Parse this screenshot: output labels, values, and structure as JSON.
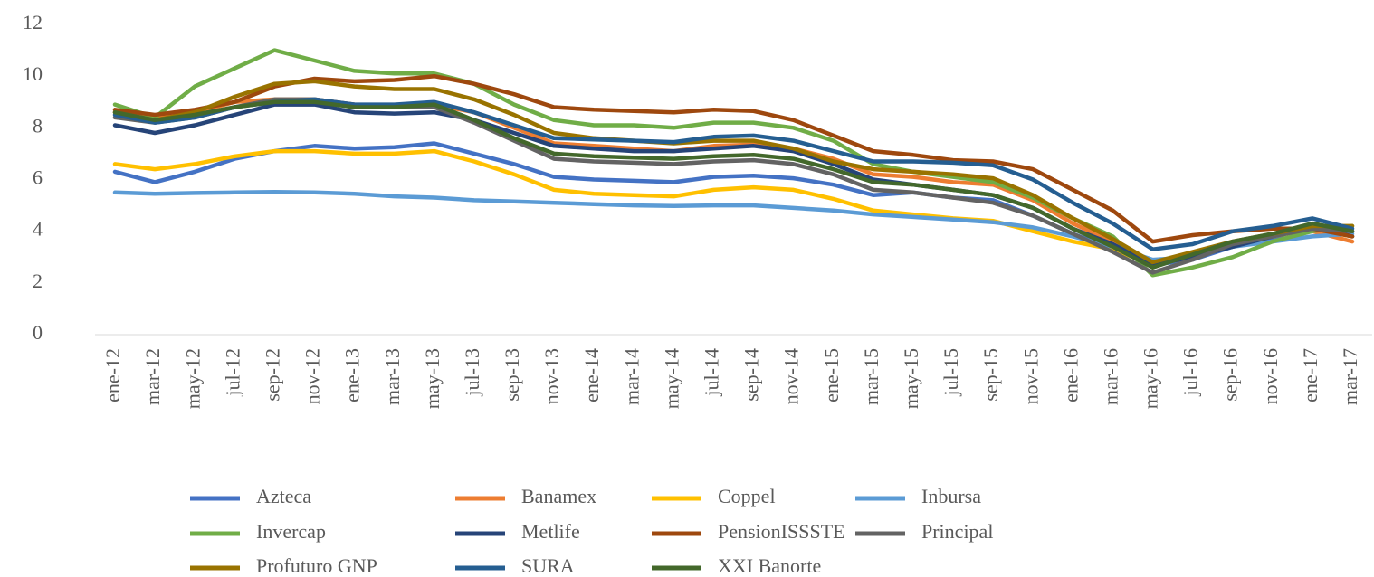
{
  "chart_data": {
    "type": "line",
    "categories": [
      "ene-12",
      "mar-12",
      "may-12",
      "jul-12",
      "sep-12",
      "nov-12",
      "ene-13",
      "mar-13",
      "may-13",
      "jul-13",
      "sep-13",
      "nov-13",
      "ene-14",
      "mar-14",
      "may-14",
      "jul-14",
      "sep-14",
      "nov-14",
      "ene-15",
      "mar-15",
      "may-15",
      "jul-15",
      "sep-15",
      "nov-15",
      "ene-16",
      "mar-16",
      "may-16",
      "jul-16",
      "sep-16",
      "nov-16",
      "ene-17",
      "mar-17"
    ],
    "ylim": [
      0,
      12
    ],
    "yticks": [
      0,
      2,
      4,
      6,
      8,
      10,
      12
    ],
    "grid": false,
    "legend": "bottom",
    "series": [
      {
        "name": "Azteca",
        "color": "#4472c4",
        "values": [
          6.3,
          5.9,
          6.3,
          6.8,
          7.1,
          7.3,
          7.2,
          7.25,
          7.4,
          7.0,
          6.6,
          6.1,
          6.0,
          5.95,
          5.9,
          6.1,
          6.15,
          6.05,
          5.8,
          5.4,
          5.5,
          5.3,
          5.2,
          4.6,
          3.9,
          3.3,
          2.7,
          2.9,
          3.4,
          3.7,
          4.3,
          4.0
        ]
      },
      {
        "name": "Banamex",
        "color": "#ed7d31",
        "values": [
          8.6,
          8.4,
          8.6,
          9.0,
          9.1,
          9.1,
          8.9,
          8.8,
          8.9,
          8.6,
          8.0,
          7.4,
          7.3,
          7.2,
          7.1,
          7.3,
          7.35,
          7.2,
          6.8,
          6.2,
          6.1,
          5.9,
          5.8,
          5.2,
          4.3,
          3.6,
          2.8,
          3.0,
          3.5,
          3.9,
          4.0,
          3.6
        ]
      },
      {
        "name": "Coppel",
        "color": "#ffc000",
        "values": [
          6.6,
          6.4,
          6.6,
          6.9,
          7.1,
          7.1,
          7.0,
          7.0,
          7.1,
          6.7,
          6.2,
          5.6,
          5.45,
          5.4,
          5.35,
          5.6,
          5.7,
          5.6,
          5.25,
          4.8,
          4.65,
          4.5,
          4.4,
          4.0,
          3.6,
          3.3,
          2.7,
          3.0,
          3.5,
          3.8,
          4.1,
          3.8
        ]
      },
      {
        "name": "Inbursa",
        "color": "#5b9bd5",
        "values": [
          5.5,
          5.45,
          5.48,
          5.5,
          5.52,
          5.5,
          5.45,
          5.35,
          5.3,
          5.2,
          5.15,
          5.1,
          5.05,
          5.0,
          4.98,
          5.0,
          5.0,
          4.9,
          4.8,
          4.65,
          4.55,
          4.45,
          4.35,
          4.15,
          3.8,
          3.4,
          2.9,
          3.0,
          3.4,
          3.6,
          3.8,
          3.9
        ]
      },
      {
        "name": "Invercap",
        "color": "#70ad47",
        "values": [
          8.9,
          8.4,
          9.6,
          10.3,
          11.0,
          10.6,
          10.2,
          10.1,
          10.1,
          9.7,
          8.9,
          8.3,
          8.1,
          8.1,
          8.0,
          8.2,
          8.2,
          8.0,
          7.5,
          6.6,
          6.3,
          6.1,
          5.9,
          5.3,
          4.5,
          3.8,
          2.3,
          2.6,
          3.0,
          3.6,
          4.0,
          4.2
        ]
      },
      {
        "name": "Metlife",
        "color": "#264478",
        "values": [
          8.1,
          7.8,
          8.1,
          8.5,
          8.9,
          8.9,
          8.6,
          8.55,
          8.6,
          8.3,
          7.8,
          7.3,
          7.2,
          7.1,
          7.1,
          7.2,
          7.3,
          7.1,
          6.6,
          6.0,
          5.8,
          5.6,
          5.4,
          4.9,
          4.1,
          3.5,
          2.7,
          3.0,
          3.4,
          3.8,
          4.2,
          3.8
        ]
      },
      {
        "name": "PensionISSSTE",
        "color": "#9e480e",
        "values": [
          8.7,
          8.5,
          8.7,
          9.0,
          9.6,
          9.9,
          9.8,
          9.85,
          10.0,
          9.7,
          9.3,
          8.8,
          8.7,
          8.65,
          8.6,
          8.7,
          8.65,
          8.3,
          7.7,
          7.1,
          6.95,
          6.75,
          6.7,
          6.4,
          5.6,
          4.8,
          3.6,
          3.85,
          4.0,
          4.1,
          4.1,
          3.8
        ]
      },
      {
        "name": "Principal",
        "color": "#636363",
        "values": [
          8.4,
          8.2,
          8.4,
          8.8,
          9.1,
          9.1,
          8.9,
          8.8,
          8.8,
          8.2,
          7.5,
          6.8,
          6.7,
          6.65,
          6.6,
          6.7,
          6.75,
          6.6,
          6.2,
          5.6,
          5.5,
          5.3,
          5.1,
          4.6,
          3.9,
          3.2,
          2.4,
          2.9,
          3.5,
          3.8,
          4.1,
          4.0
        ]
      },
      {
        "name": "Profuturo GNP",
        "color": "#997300",
        "values": [
          8.6,
          8.3,
          8.6,
          9.2,
          9.7,
          9.8,
          9.6,
          9.5,
          9.5,
          9.1,
          8.5,
          7.8,
          7.6,
          7.5,
          7.4,
          7.5,
          7.5,
          7.2,
          6.7,
          6.4,
          6.3,
          6.2,
          6.05,
          5.4,
          4.5,
          3.7,
          2.8,
          3.2,
          3.6,
          3.9,
          4.2,
          4.2
        ]
      },
      {
        "name": "SURA",
        "color": "#255e91",
        "values": [
          8.5,
          8.2,
          8.4,
          8.8,
          9.0,
          9.1,
          8.9,
          8.9,
          9.0,
          8.6,
          8.1,
          7.6,
          7.55,
          7.5,
          7.45,
          7.65,
          7.7,
          7.5,
          7.1,
          6.7,
          6.7,
          6.65,
          6.55,
          6.0,
          5.1,
          4.3,
          3.3,
          3.5,
          4.0,
          4.2,
          4.5,
          4.1
        ]
      },
      {
        "name": "XXI Banorte",
        "color": "#43682b",
        "values": [
          8.6,
          8.3,
          8.5,
          8.8,
          9.0,
          9.0,
          8.8,
          8.8,
          8.9,
          8.3,
          7.6,
          7.0,
          6.9,
          6.85,
          6.8,
          6.9,
          6.95,
          6.8,
          6.4,
          5.9,
          5.8,
          5.6,
          5.4,
          4.9,
          4.1,
          3.4,
          2.6,
          3.1,
          3.6,
          3.9,
          4.3,
          4.0
        ]
      }
    ]
  }
}
